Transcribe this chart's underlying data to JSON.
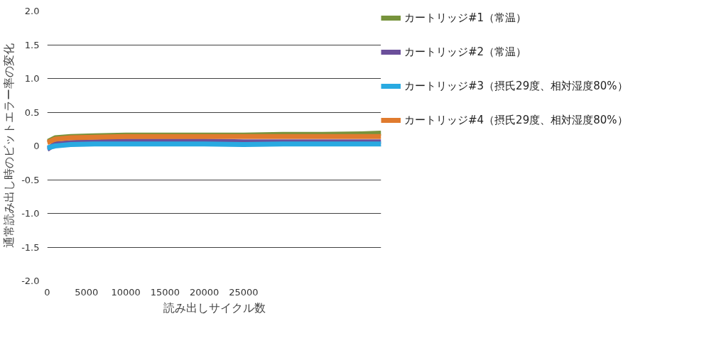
{
  "chart_data": {
    "type": "line",
    "xlabel": "読み出しサイクル数",
    "ylabel": "通常読み出し時のビットエラー率の変化",
    "x": [
      0,
      1000,
      3000,
      6000,
      10000,
      15000,
      20000,
      25000,
      30000,
      35000,
      40000,
      42500
    ],
    "xlim": [
      0,
      42500
    ],
    "xticks": [
      0,
      5000,
      10000,
      15000,
      20000,
      25000
    ],
    "ylim": [
      -2,
      2
    ],
    "yticks": [
      {
        "value": -2,
        "label": "-2.0"
      },
      {
        "value": -1.5,
        "label": "-1.5"
      },
      {
        "value": -1,
        "label": "-1.0"
      },
      {
        "value": -0.5,
        "label": "-0.5"
      },
      0,
      {
        "value": 0.5,
        "label": "0.5"
      },
      {
        "value": 1,
        "label": "1.0"
      },
      {
        "value": 1.5,
        "label": "1.5"
      },
      {
        "value": 2,
        "label": "2.0"
      }
    ],
    "grid": "y",
    "legend": "right",
    "line_style": "solid",
    "marker": "none",
    "series": [
      {
        "name": "カートリッジ#1（常温）",
        "color": "#77933c",
        "values": [
          0.06,
          0.12,
          0.14,
          0.15,
          0.16,
          0.16,
          0.16,
          0.16,
          0.17,
          0.17,
          0.18,
          0.19
        ]
      },
      {
        "name": "カートリッジ#2（常温）",
        "color": "#6b4f9a",
        "values": [
          -0.05,
          0.03,
          0.05,
          0.06,
          0.07,
          0.07,
          0.07,
          0.06,
          0.06,
          0.06,
          0.06,
          0.06
        ]
      },
      {
        "name": "カートリッジ#3（摂氏29度、相対湿度80%）",
        "color": "#29aae1",
        "values": [
          -0.03,
          0.0,
          0.02,
          0.03,
          0.03,
          0.03,
          0.03,
          0.02,
          0.03,
          0.03,
          0.03,
          0.03
        ]
      },
      {
        "name": "カートリッジ#4（摂氏29度、相対湿度80%）",
        "color": "#e07b2e",
        "values": [
          0.05,
          0.1,
          0.12,
          0.13,
          0.14,
          0.14,
          0.14,
          0.14,
          0.14,
          0.14,
          0.14,
          0.14
        ]
      }
    ]
  }
}
